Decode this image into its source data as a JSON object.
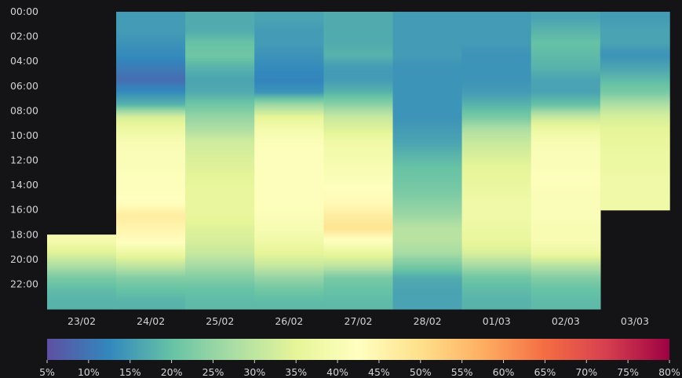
{
  "chart_data": {
    "type": "heatmap",
    "title": "",
    "xlabel": "",
    "ylabel": "",
    "columns": [
      "23/02",
      "24/02",
      "25/02",
      "26/02",
      "27/02",
      "28/02",
      "01/03",
      "02/03",
      "03/03"
    ],
    "y_ticks": [
      "00:00",
      "02:00",
      "04:00",
      "06:00",
      "08:00",
      "10:00",
      "12:00",
      "14:00",
      "16:00",
      "18:00",
      "20:00",
      "22:00"
    ],
    "hours": [
      "00:00",
      "01:00",
      "02:00",
      "03:00",
      "04:00",
      "05:00",
      "06:00",
      "07:00",
      "08:00",
      "09:00",
      "10:00",
      "11:00",
      "12:00",
      "13:00",
      "14:00",
      "15:00",
      "16:00",
      "17:00",
      "18:00",
      "19:00",
      "20:00",
      "21:00",
      "22:00",
      "23:00"
    ],
    "values": [
      [
        null,
        15,
        17,
        16,
        17,
        15,
        15,
        16,
        15
      ],
      [
        null,
        15,
        17,
        15,
        17,
        15,
        15,
        18,
        16
      ],
      [
        null,
        14,
        20,
        15,
        17,
        15,
        15,
        20,
        16
      ],
      [
        null,
        13,
        21,
        14,
        18,
        15,
        14,
        19,
        14
      ],
      [
        null,
        11,
        18,
        13,
        15,
        14,
        14,
        18,
        16
      ],
      [
        null,
        9,
        16,
        12,
        15,
        14,
        14,
        16,
        19
      ],
      [
        null,
        13,
        17,
        14,
        18,
        14,
        15,
        16,
        22
      ],
      [
        null,
        18,
        21,
        26,
        24,
        14,
        18,
        20,
        28
      ],
      [
        null,
        33,
        25,
        35,
        31,
        14,
        22,
        31,
        33
      ],
      [
        null,
        37,
        28,
        39,
        34,
        15,
        28,
        37,
        35
      ],
      [
        null,
        40,
        32,
        41,
        38,
        16,
        31,
        40,
        36
      ],
      [
        null,
        41,
        33,
        42,
        39,
        18,
        33,
        41,
        37
      ],
      [
        null,
        41,
        34,
        42,
        40,
        20,
        35,
        41,
        37
      ],
      [
        null,
        42,
        35,
        42,
        41,
        21,
        36,
        42,
        38
      ],
      [
        null,
        42,
        36,
        42,
        43,
        22,
        37,
        41,
        38
      ],
      [
        null,
        43,
        36,
        42,
        44,
        24,
        38,
        41,
        38
      ],
      [
        null,
        47,
        36,
        41,
        47,
        26,
        38,
        41,
        null
      ],
      [
        null,
        45,
        34,
        40,
        49,
        29,
        37,
        40,
        null
      ],
      [
        39,
        43,
        33,
        38,
        42,
        29,
        36,
        40,
        null
      ],
      [
        34,
        37,
        31,
        35,
        36,
        27,
        33,
        37,
        null
      ],
      [
        28,
        30,
        27,
        31,
        30,
        22,
        27,
        29,
        null
      ],
      [
        22,
        23,
        23,
        25,
        22,
        17,
        21,
        23,
        null
      ],
      [
        19,
        20,
        20,
        21,
        20,
        16,
        19,
        20,
        null
      ],
      [
        18,
        18,
        19,
        19,
        19,
        16,
        18,
        19,
        null
      ]
    ],
    "colorbar": {
      "min": 5,
      "max": 80,
      "ticks": [
        "5%",
        "10%",
        "15%",
        "20%",
        "25%",
        "30%",
        "35%",
        "40%",
        "45%",
        "50%",
        "55%",
        "60%",
        "65%",
        "70%",
        "75%",
        "80%"
      ],
      "colormap": "Spectral_r"
    },
    "colors": {
      "background": "#141416",
      "text": "#d4d4d4"
    }
  }
}
